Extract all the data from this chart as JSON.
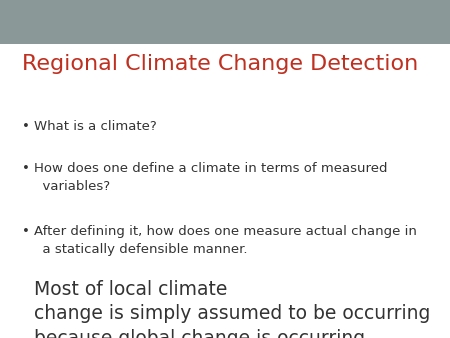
{
  "title": "Regional Climate Change Detection",
  "title_color": "#C03020",
  "title_fontsize": 16,
  "background_color": "#FFFFFF",
  "header_bar_color": "#8A9898",
  "bullet_color": "#333333",
  "small_fontsize": 9.5,
  "large_fontsize": 13.5,
  "figsize": [
    4.5,
    3.38
  ],
  "dpi": 100,
  "bullet_items": [
    {
      "small_text": "What is a climate?",
      "large_text": null
    },
    {
      "small_text": "How does one define a climate in terms of measured\n  variables?",
      "large_text": null
    },
    {
      "small_text": "After defining it, how does one measure actual change in\n  a statically defensible manner. ",
      "large_text": "Most of local climate\nchange is simply assumed to be occurring\nbecause global change is occurring"
    }
  ]
}
